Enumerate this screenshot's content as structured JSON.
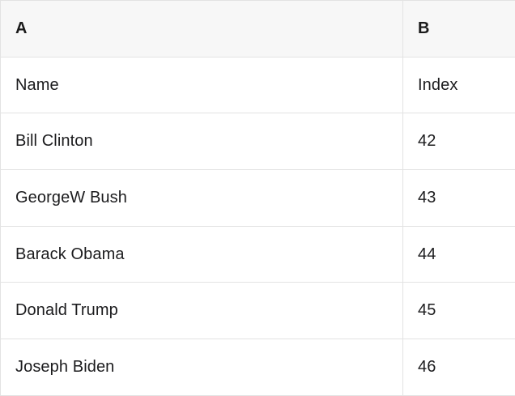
{
  "table": {
    "header": {
      "col_a": "A",
      "col_b": "B"
    },
    "rows": [
      {
        "a": "Name",
        "b": "Index"
      },
      {
        "a": "Bill Clinton",
        "b": "42"
      },
      {
        "a": "GeorgeW Bush",
        "b": "43"
      },
      {
        "a": "Barack Obama",
        "b": "44"
      },
      {
        "a": "Donald Trump",
        "b": "45"
      },
      {
        "a": "Joseph Biden",
        "b": "46"
      }
    ],
    "colors": {
      "header_background": "#f7f7f7",
      "row_background": "#ffffff",
      "border": "#e3e3e3",
      "text": "#1c1c1e"
    }
  }
}
